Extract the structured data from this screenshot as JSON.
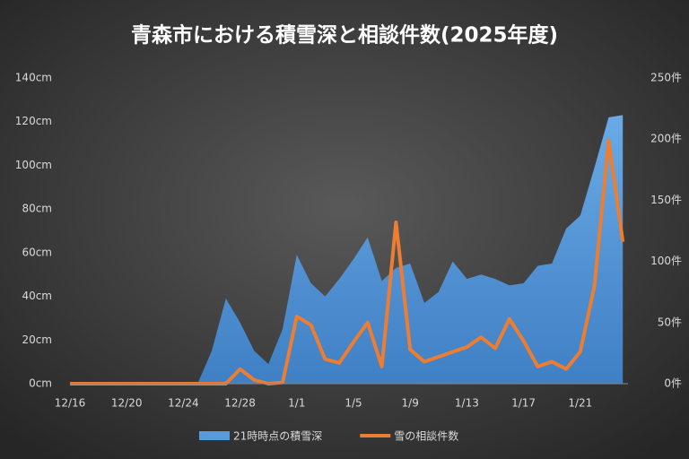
{
  "chart_data": {
    "type": "area-line",
    "title": "青森市における積雪深と相談件数(2025年度)",
    "categories": [
      "12/16",
      null,
      null,
      null,
      "12/20",
      null,
      null,
      null,
      "12/24",
      null,
      null,
      null,
      "12/28",
      null,
      null,
      null,
      "1/1",
      null,
      null,
      null,
      "1/5",
      null,
      null,
      null,
      "1/9",
      null,
      null,
      null,
      "1/13",
      null,
      null,
      null,
      "1/17",
      null,
      null,
      null,
      "1/21",
      null,
      null,
      null
    ],
    "series": [
      {
        "name": "21時時点の積雪深",
        "color": "#5b9bd5",
        "type": "area",
        "values": [
          0,
          0,
          0,
          0,
          0,
          0,
          0,
          0,
          0,
          0,
          15,
          39,
          28,
          15,
          9,
          25,
          59,
          46,
          40,
          48,
          57,
          67,
          47,
          53,
          55,
          37,
          42,
          56,
          48,
          50,
          48,
          45,
          46,
          54,
          55,
          71,
          77,
          99,
          122,
          123
        ]
      },
      {
        "name": "雪の相談件数",
        "color": "#ed7d31",
        "type": "line",
        "axis": "y2",
        "values": [
          0,
          0,
          0,
          0,
          0,
          0,
          0,
          0,
          0,
          0,
          0,
          0,
          12,
          3,
          0,
          1,
          55,
          48,
          20,
          17,
          34,
          50,
          14,
          132,
          28,
          18,
          22,
          26,
          30,
          38,
          29,
          53,
          35,
          14,
          18,
          12,
          26,
          80,
          199,
          116
        ]
      }
    ],
    "ylim": [
      0,
      140
    ],
    "yticks": [
      {
        "value": 0,
        "label": "0cm"
      },
      {
        "value": 20,
        "label": "20cm"
      },
      {
        "value": 40,
        "label": "40cm"
      },
      {
        "value": 60,
        "label": "60cm"
      },
      {
        "value": 80,
        "label": "80cm"
      },
      {
        "value": 100,
        "label": "100cm"
      },
      {
        "value": 120,
        "label": "120cm"
      },
      {
        "value": 140,
        "label": "140cm"
      }
    ],
    "y2lim": [
      0,
      250
    ],
    "y2ticks": [
      {
        "value": 0,
        "label": "0件"
      },
      {
        "value": 50,
        "label": "50件"
      },
      {
        "value": 100,
        "label": "100件"
      },
      {
        "value": 150,
        "label": "150件"
      },
      {
        "value": 200,
        "label": "200件"
      },
      {
        "value": 250,
        "label": "250件"
      }
    ],
    "grid": false,
    "legend": "bottom"
  }
}
